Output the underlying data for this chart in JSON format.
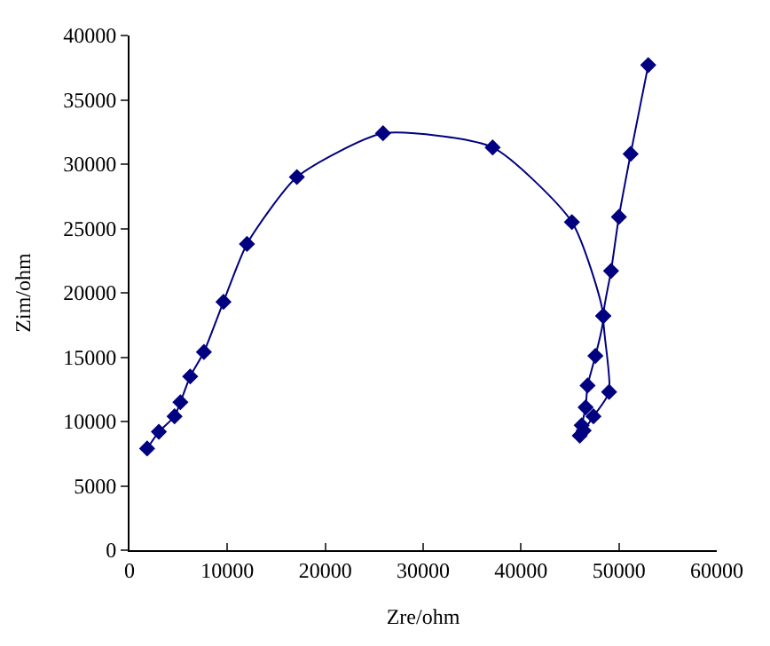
{
  "chart_data": {
    "type": "line",
    "xlabel": "Zre/ohm",
    "ylabel": "Zim/ohm",
    "series": [
      {
        "color": "#000080",
        "line_style": "solid",
        "x": [
          1800,
          3000,
          4600,
          5200,
          6200,
          7600,
          9600,
          12000,
          17100,
          25900,
          37100,
          45200,
          48400,
          47600,
          46800,
          46600,
          46200,
          46000,
          46400,
          47400,
          49000,
          48400,
          49200,
          50000,
          51200,
          53000
        ],
        "values": [
          7900,
          9200,
          10400,
          11500,
          13500,
          15400,
          19300,
          23800,
          29000,
          32400,
          31300,
          25500,
          18200,
          15100,
          12800,
          11100,
          9700,
          8900,
          9300,
          10400,
          12300,
          18200,
          21700,
          25900,
          30800,
          37700
        ]
      }
    ],
    "xlim": [
      0,
      60000
    ],
    "xticks": [
      0,
      10000,
      20000,
      30000,
      40000,
      50000,
      60000
    ],
    "ylim": [
      0,
      40000
    ],
    "yticks": [
      0,
      5000,
      10000,
      15000,
      20000,
      25000,
      30000,
      35000,
      40000
    ],
    "marker": "diamond"
  }
}
